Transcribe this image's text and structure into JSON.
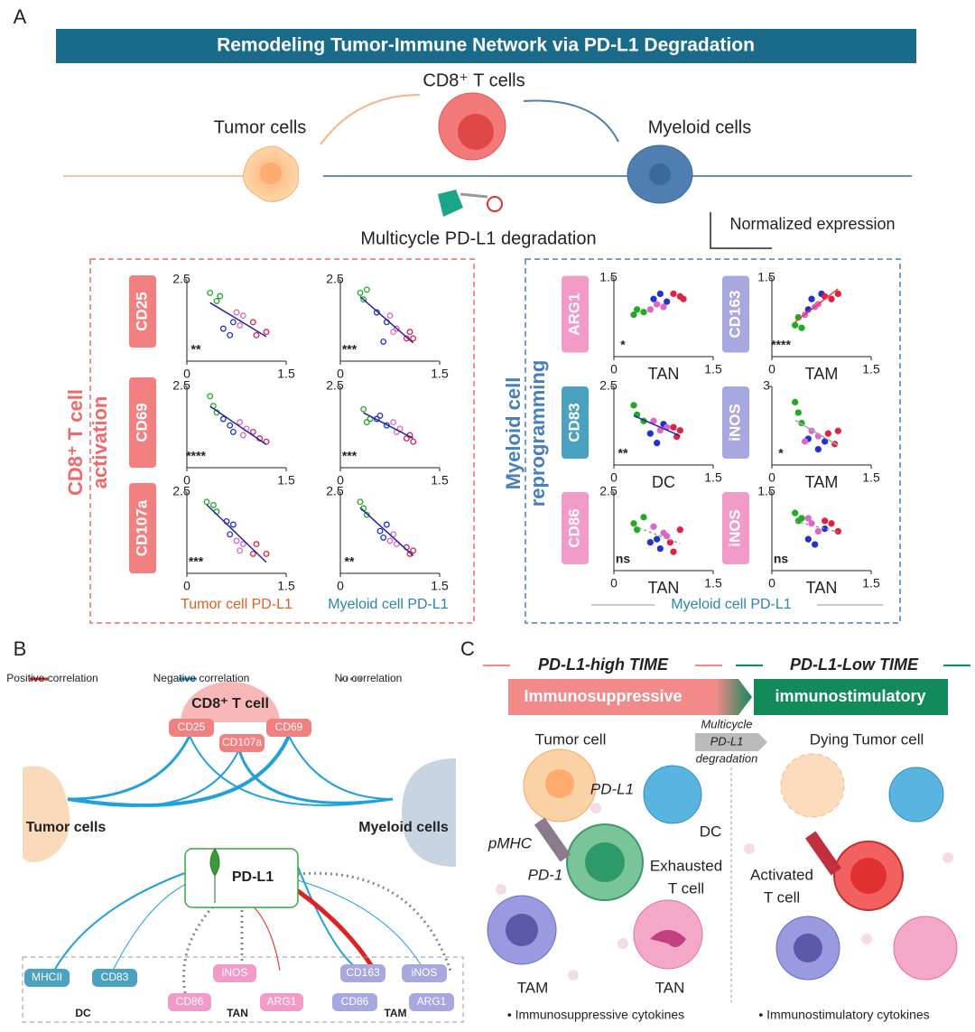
{
  "panel_a": {
    "label": "A",
    "title": "Remodeling Tumor-Immune Network via PD-L1 Degradation",
    "cd8_label": "CD8⁺ T cells",
    "tumor_label": "Tumor cells",
    "myeloid_label": "Myeloid cells",
    "degradation": "Multicycle PD-L1 degradation",
    "normalized": "Normalized expression",
    "palette": [
      "#22aa22",
      "#2233cc",
      "#dd66cc",
      "#dd2244"
    ],
    "left": {
      "group_label": [
        "CD8⁺ T cell",
        "activation"
      ],
      "row_labels": [
        "CD25",
        "CD69",
        "CD107a"
      ],
      "x_labels": [
        "Tumor cell PD-L1",
        "Myeloid cell PD-L1"
      ],
      "marker": "open"
    },
    "right": {
      "group_label": [
        "Myeloid cell",
        "reprogramming"
      ],
      "row_labels": [
        [
          "ARG1",
          "CD83",
          "CD86"
        ],
        [
          "CD163",
          "iNOS",
          "iNOS"
        ]
      ],
      "x_label": "Myeloid cell PD-L1",
      "marker": "filled"
    },
    "plots": [
      {
        "xlim": [
          0,
          1.5
        ],
        "ylim": [
          0,
          2.5
        ],
        "xticks": [
          0,
          1.5
        ],
        "yticks": [
          2.5
        ],
        "sig": "**",
        "sig_color": "#2233cc",
        "fit": "#2222aa",
        "points": [
          [
            0.35,
            2.1
          ],
          [
            0.45,
            1.85
          ],
          [
            0.5,
            2.0
          ],
          [
            0.55,
            1.0
          ],
          [
            0.65,
            0.8
          ],
          [
            0.7,
            1.2
          ],
          [
            0.75,
            1.5
          ],
          [
            0.85,
            1.4
          ],
          [
            0.8,
            1.1
          ],
          [
            1.0,
            1.2
          ],
          [
            1.05,
            0.8
          ],
          [
            1.2,
            0.9
          ]
        ]
      },
      {
        "xlim": [
          0,
          1.5
        ],
        "ylim": [
          0,
          2.5
        ],
        "xticks": [
          0,
          1.5
        ],
        "yticks": [
          2.5
        ],
        "sig": "****",
        "sig_color": "#2233cc",
        "fit": "#2222aa",
        "points": [
          [
            0.35,
            2.2
          ],
          [
            0.4,
            1.9
          ],
          [
            0.45,
            1.7
          ],
          [
            0.55,
            1.5
          ],
          [
            0.65,
            1.3
          ],
          [
            0.7,
            1.1
          ],
          [
            0.8,
            1.4
          ],
          [
            0.9,
            1.2
          ],
          [
            0.85,
            1.0
          ],
          [
            1.0,
            1.1
          ],
          [
            1.1,
            0.9
          ],
          [
            1.2,
            0.8
          ]
        ]
      },
      {
        "xlim": [
          0,
          1.5
        ],
        "ylim": [
          0,
          2.5
        ],
        "xticks": [
          0,
          1.5
        ],
        "yticks": [
          2.5
        ],
        "sig": "***",
        "sig_color": "#2233cc",
        "fit": "#2222aa",
        "points": [
          [
            0.3,
            2.2
          ],
          [
            0.4,
            2.1
          ],
          [
            0.45,
            1.9
          ],
          [
            0.6,
            1.6
          ],
          [
            0.7,
            1.5
          ],
          [
            0.65,
            1.2
          ],
          [
            0.75,
            1.0
          ],
          [
            0.85,
            0.9
          ],
          [
            0.8,
            0.7
          ],
          [
            1.0,
            0.6
          ],
          [
            1.05,
            0.9
          ],
          [
            1.2,
            0.6
          ]
        ]
      },
      {
        "xlim": [
          0,
          1.5
        ],
        "ylim": [
          0,
          2.5
        ],
        "xticks": [
          0,
          1.5
        ],
        "yticks": [
          2.5
        ],
        "sig": "***",
        "sig_color": "#2233cc",
        "fit": "#2222aa",
        "points": [
          [
            0.3,
            2.1
          ],
          [
            0.35,
            1.9
          ],
          [
            0.4,
            2.2
          ],
          [
            0.55,
            1.5
          ],
          [
            0.7,
            1.2
          ],
          [
            0.65,
            0.6
          ],
          [
            0.75,
            1.4
          ],
          [
            0.85,
            1.0
          ],
          [
            0.8,
            0.9
          ],
          [
            1.0,
            0.7
          ],
          [
            1.05,
            0.9
          ],
          [
            1.1,
            0.7
          ]
        ]
      },
      {
        "xlim": [
          0,
          1.5
        ],
        "ylim": [
          0,
          2.5
        ],
        "xticks": [
          0,
          1.5
        ],
        "yticks": [
          2.5
        ],
        "sig": "***",
        "sig_color": "#2233cc",
        "fit": "#2222aa",
        "points": [
          [
            0.35,
            1.8
          ],
          [
            0.4,
            1.4
          ],
          [
            0.45,
            1.5
          ],
          [
            0.55,
            1.5
          ],
          [
            0.6,
            1.6
          ],
          [
            0.7,
            1.3
          ],
          [
            0.8,
            1.4
          ],
          [
            0.85,
            1.1
          ],
          [
            0.9,
            1.2
          ],
          [
            1.0,
            0.9
          ],
          [
            1.05,
            1.0
          ],
          [
            1.1,
            0.8
          ]
        ]
      },
      {
        "xlim": [
          0,
          1.5
        ],
        "ylim": [
          0,
          2.5
        ],
        "xticks": [
          0,
          1.5
        ],
        "yticks": [
          2.5
        ],
        "sig": "**",
        "sig_color": "#2233cc",
        "fit": "#2222aa",
        "points": [
          [
            0.3,
            2.2
          ],
          [
            0.35,
            2.0
          ],
          [
            0.4,
            1.8
          ],
          [
            0.6,
            1.3
          ],
          [
            0.7,
            1.5
          ],
          [
            0.65,
            1.1
          ],
          [
            0.75,
            1.0
          ],
          [
            0.85,
            0.9
          ],
          [
            0.8,
            1.2
          ],
          [
            1.0,
            0.8
          ],
          [
            1.05,
            0.6
          ],
          [
            1.1,
            0.7
          ]
        ]
      },
      {
        "xlim": [
          0,
          1.5
        ],
        "ylim": [
          0,
          1.5
        ],
        "xticks": [
          0,
          1.5
        ],
        "yticks": [
          1.5
        ],
        "sig": "*",
        "sig_color": "#dd3333",
        "x_label": "TAN",
        "x_label_color": "#e070c0",
        "points": [
          [
            0.3,
            0.8
          ],
          [
            0.35,
            0.9
          ],
          [
            0.45,
            0.85
          ],
          [
            0.6,
            1.1
          ],
          [
            0.7,
            1.2
          ],
          [
            0.8,
            1.05
          ],
          [
            0.65,
            1.0
          ],
          [
            0.75,
            0.95
          ],
          [
            0.55,
            0.9
          ],
          [
            0.9,
            1.2
          ],
          [
            1.0,
            1.15
          ],
          [
            1.05,
            1.1
          ]
        ]
      },
      {
        "xlim": [
          0,
          1.5
        ],
        "ylim": [
          0,
          2.5
        ],
        "xticks": [
          0,
          1.5
        ],
        "yticks": [
          2.5
        ],
        "sig": "**",
        "sig_color": "#2233cc",
        "fit": "#2222aa",
        "x_label": "DC",
        "x_label_color": "#3a8fb0",
        "points": [
          [
            0.3,
            1.9
          ],
          [
            0.35,
            1.6
          ],
          [
            0.45,
            1.4
          ],
          [
            0.55,
            1.0
          ],
          [
            0.65,
            0.7
          ],
          [
            0.75,
            1.3
          ],
          [
            0.6,
            1.4
          ],
          [
            0.7,
            1.1
          ],
          [
            0.8,
            1.2
          ],
          [
            0.9,
            1.2
          ],
          [
            0.95,
            0.9
          ],
          [
            1.0,
            1.1
          ]
        ]
      },
      {
        "xlim": [
          0,
          1.5
        ],
        "ylim": [
          0,
          2.5
        ],
        "xticks": [
          0,
          1.5
        ],
        "yticks": [
          2.5
        ],
        "sig": "ns",
        "sig_color": "#222222",
        "fit": "#999999",
        "fit_dashed": true,
        "x_label": "TAN",
        "x_label_color": "#e070c0",
        "points": [
          [
            0.3,
            1.5
          ],
          [
            0.35,
            1.3
          ],
          [
            0.45,
            1.7
          ],
          [
            0.55,
            0.9
          ],
          [
            0.65,
            1.0
          ],
          [
            0.7,
            0.7
          ],
          [
            0.6,
            1.4
          ],
          [
            0.75,
            1.2
          ],
          [
            0.8,
            1.1
          ],
          [
            0.85,
            0.9
          ],
          [
            0.9,
            0.6
          ],
          [
            1.0,
            1.3
          ]
        ]
      },
      {
        "xlim": [
          0,
          1.5
        ],
        "ylim": [
          0,
          1.5
        ],
        "xticks": [
          0,
          1.5
        ],
        "yticks": [
          1.5
        ],
        "sig": "****",
        "sig_color": "#dd3333",
        "fit": "#dd4444",
        "x_label": "TAM",
        "x_label_color": "#8a86c0",
        "points": [
          [
            0.35,
            0.6
          ],
          [
            0.4,
            0.75
          ],
          [
            0.45,
            0.55
          ],
          [
            0.55,
            0.9
          ],
          [
            0.6,
            1.1
          ],
          [
            0.75,
            1.2
          ],
          [
            0.5,
            0.8
          ],
          [
            0.65,
            0.95
          ],
          [
            0.7,
            1.0
          ],
          [
            0.8,
            1.15
          ],
          [
            0.9,
            1.1
          ],
          [
            1.0,
            1.2
          ]
        ]
      },
      {
        "xlim": [
          0,
          1.5
        ],
        "ylim": [
          0,
          3
        ],
        "xticks": [
          0,
          1.5
        ],
        "yticks": [
          3
        ],
        "sig": "*",
        "sig_color": "#2233cc",
        "fit": "#aaaaaa",
        "x_label": "TAM",
        "x_label_color": "#8a86c0",
        "points": [
          [
            0.35,
            2.4
          ],
          [
            0.4,
            2.0
          ],
          [
            0.45,
            1.6
          ],
          [
            0.55,
            1.0
          ],
          [
            0.7,
            0.6
          ],
          [
            0.8,
            0.9
          ],
          [
            0.6,
            1.3
          ],
          [
            0.7,
            1.1
          ],
          [
            0.5,
            0.9
          ],
          [
            0.85,
            1.2
          ],
          [
            0.95,
            0.8
          ],
          [
            1.0,
            1.3
          ]
        ]
      },
      {
        "xlim": [
          0,
          1.5
        ],
        "ylim": [
          0,
          1.5
        ],
        "xticks": [
          0,
          1.5
        ],
        "yticks": [
          1.5
        ],
        "sig": "ns",
        "sig_color": "#222222",
        "fit": "#999999",
        "fit_dashed": true,
        "x_label": "TAN",
        "x_label_color": "#e070c0",
        "points": [
          [
            0.35,
            1.1
          ],
          [
            0.4,
            0.95
          ],
          [
            0.45,
            1.0
          ],
          [
            0.55,
            0.6
          ],
          [
            0.65,
            0.5
          ],
          [
            0.8,
            0.8
          ],
          [
            0.6,
            0.9
          ],
          [
            0.7,
            0.75
          ],
          [
            0.55,
            1.0
          ],
          [
            0.8,
            0.95
          ],
          [
            0.9,
            0.9
          ],
          [
            1.0,
            0.75
          ]
        ]
      }
    ]
  },
  "panel_b": {
    "label": "B",
    "legend": [
      "Positive correlation",
      "Negative correlation",
      "No correlation"
    ],
    "cd8_label": "CD8⁺ T cell",
    "cd8_markers": [
      "CD25",
      "CD107a",
      "CD69"
    ],
    "tumor_label": "Tumor cells",
    "myeloid_label": "Myeloid cells",
    "pdl1_label": "PD-L1",
    "dc_markers": [
      "MHCII",
      "CD83"
    ],
    "dc_label": "DC",
    "tan_markers": [
      "iNOS",
      "CD86",
      "ARG1"
    ],
    "tan_label": "TAN",
    "tam_markers": [
      "CD163",
      "iNOS",
      "CD86",
      "ARG1"
    ],
    "tam_label": "TAM"
  },
  "panel_c": {
    "label": "C",
    "high_title": "PD-L1-high TIME",
    "low_title": "PD-L1-Low TIME",
    "suppressive": "Immunosuppressive",
    "stimulatory": "immunostimulatory",
    "degradation": [
      "Multicycle",
      "PD-L1",
      "degradation"
    ],
    "tumor_cell": "Tumor cell",
    "pdl1": "PD-L1",
    "dc": "DC",
    "pmhc": "pMHC",
    "pd1": "PD-1",
    "exhausted": [
      "Exhausted",
      "T cell"
    ],
    "tam": "TAM",
    "tan": "TAN",
    "cytokines_left": "• Immunosuppressive cytokines",
    "dying": "Dying Tumor cell",
    "activated": [
      "Activated",
      "T cell"
    ],
    "cytokines_right": "• Immunostimulatory cytokines"
  }
}
